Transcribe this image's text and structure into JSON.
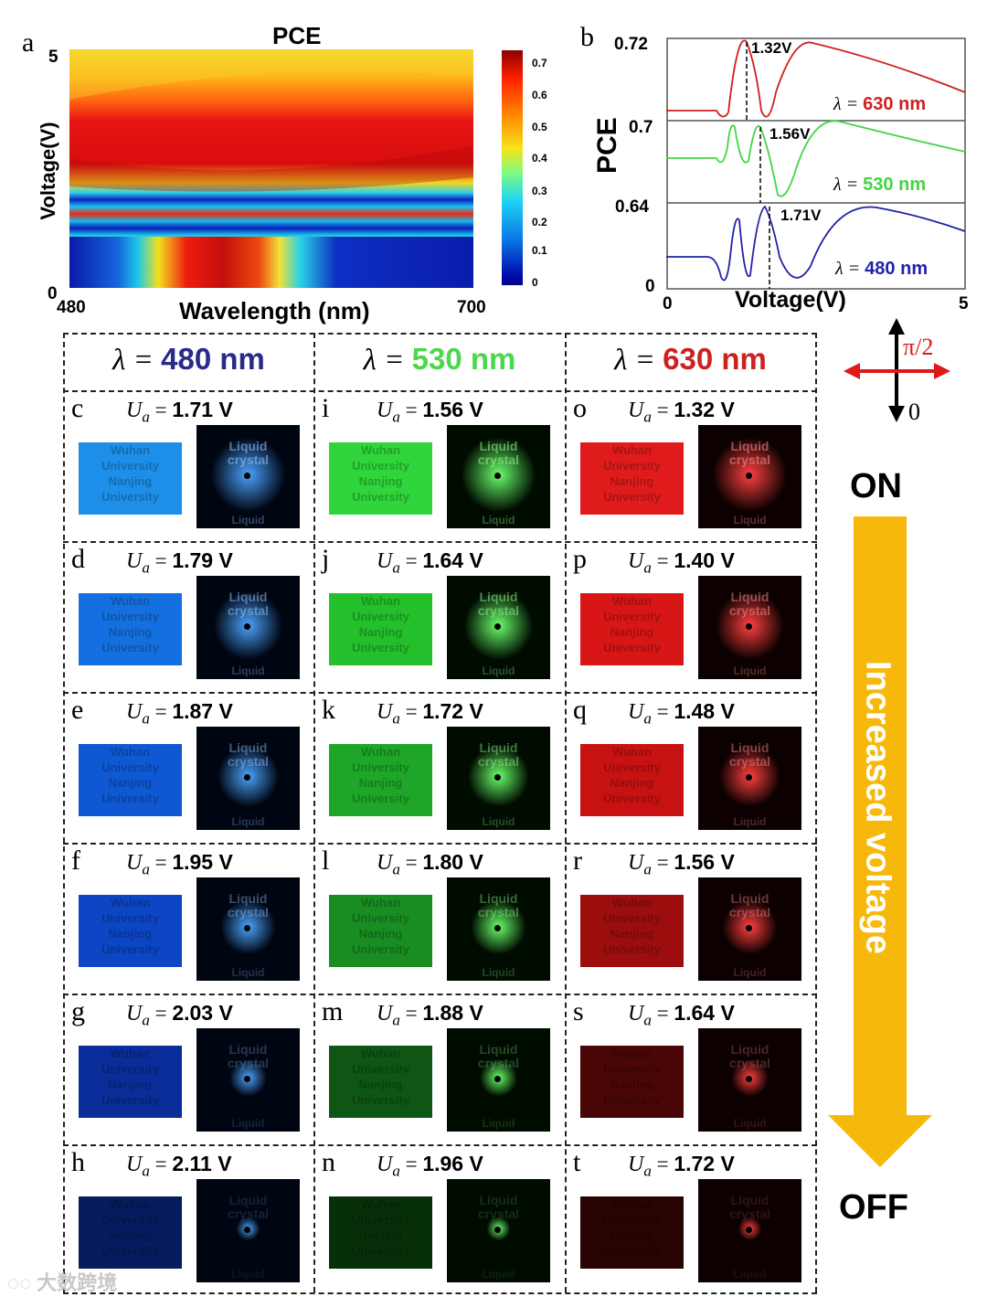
{
  "panel_a": {
    "letter": "a",
    "title": "PCE",
    "xlabel": "Wavelength (nm)",
    "ylabel": "Voltage(V)",
    "x_ticks": [
      "480",
      "700"
    ],
    "y_ticks": [
      "5",
      "0"
    ],
    "colorbar_ticks": [
      "0.7",
      "0.6",
      "0.5",
      "0.4",
      "0.3",
      "0.2",
      "0.1",
      "0"
    ]
  },
  "panel_b": {
    "letter": "b",
    "ylabel": "PCE",
    "xlabel": "Voltage(V)",
    "x_ticks": [
      "0",
      "5"
    ],
    "y_ticks": [
      "0.72",
      "0.7",
      "0.64",
      "0"
    ],
    "traces": [
      {
        "lambda_text": "λ = ",
        "wavelength": "630 nm",
        "peak": "1.32V",
        "color": "#d01f1f"
      },
      {
        "lambda_text": "λ = ",
        "wavelength": "530 nm",
        "peak": "1.56V",
        "color": "#43d843"
      },
      {
        "lambda_text": "λ = ",
        "wavelength": "480 nm",
        "peak": "1.71V",
        "color": "#2222aa"
      }
    ]
  },
  "chart_data": [
    {
      "type": "heatmap",
      "title": "PCE",
      "xlabel": "Wavelength (nm)",
      "ylabel": "Voltage(V)",
      "xlim": [
        480,
        700
      ],
      "ylim": [
        0,
        5
      ],
      "colorbar_range": [
        0,
        0.7
      ]
    },
    {
      "type": "line",
      "xlabel": "Voltage(V)",
      "ylabel": "PCE",
      "xlim": [
        0,
        5
      ],
      "series": [
        {
          "name": "630 nm",
          "peak_voltage": 1.32
        },
        {
          "name": "530 nm",
          "peak_voltage": 1.56
        },
        {
          "name": "480 nm",
          "peak_voltage": 1.71
        }
      ]
    }
  ],
  "grid": {
    "headers": [
      {
        "prefix": "λ = ",
        "value": "480 nm",
        "color": "#2a2a8a"
      },
      {
        "prefix": "λ = ",
        "value": "530 nm",
        "color": "#4cd84c"
      },
      {
        "prefix": "λ = ",
        "value": "630 nm",
        "color": "#cf2020"
      }
    ],
    "ua_symbol": "U",
    "ua_sub": "a",
    "equals": " = ",
    "columns": [
      {
        "letters": [
          "c",
          "d",
          "e",
          "f",
          "g",
          "h"
        ],
        "voltages": [
          "1.71 V",
          "1.79 V",
          "1.87 V",
          "1.95 V",
          "2.03 V",
          "2.11 V"
        ]
      },
      {
        "letters": [
          "i",
          "j",
          "k",
          "l",
          "m",
          "n"
        ],
        "voltages": [
          "1.56 V",
          "1.64 V",
          "1.72 V",
          "1.80 V",
          "1.88 V",
          "1.96 V"
        ]
      },
      {
        "letters": [
          "o",
          "p",
          "q",
          "r",
          "s",
          "t"
        ],
        "voltages": [
          "1.32 V",
          "1.40 V",
          "1.48 V",
          "1.56 V",
          "1.64 V",
          "1.72 V"
        ]
      }
    ],
    "image_text_left": [
      "Wuhan",
      "University",
      "Nanjing",
      "University"
    ],
    "image_text_right": [
      "Liquid",
      "crystal",
      "Liquid"
    ]
  },
  "side": {
    "polarizer_top": "π/2",
    "polarizer_bottom": "0",
    "on_label": "ON",
    "off_label": "OFF",
    "arrow_label": "Increased voltage"
  },
  "watermark": "大数跨境"
}
